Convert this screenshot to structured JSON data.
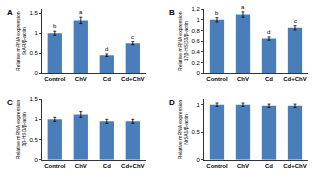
{
  "chart_data": [
    {
      "type": "bar",
      "panel": "A",
      "ylabel": [
        "Relative mRNA expression",
        "StAR/β-actin"
      ],
      "categories": [
        "Control",
        "ChV",
        "Cd",
        "Cd+ChV"
      ],
      "values": [
        1.0,
        1.32,
        0.45,
        0.75
      ],
      "errors": [
        0.05,
        0.08,
        0.03,
        0.04
      ],
      "letters": [
        "b",
        "a",
        "d",
        "c"
      ],
      "color": "#4a7ebb",
      "ylim": [
        0,
        1.6
      ],
      "yticks": [
        0,
        0.5,
        1,
        1.5
      ],
      "grid": false
    },
    {
      "type": "bar",
      "panel": "B",
      "ylabel": [
        "Relative mRNA expression",
        "17β-HSD3/β-actin"
      ],
      "categories": [
        "Control",
        "ChV",
        "Cd",
        "Cd+ChV"
      ],
      "values": [
        1.0,
        1.1,
        0.65,
        0.85
      ],
      "errors": [
        0.04,
        0.05,
        0.03,
        0.04
      ],
      "letters": [
        "b",
        "a",
        "d",
        "c"
      ],
      "color": "#4a7ebb",
      "ylim": [
        0,
        1.2
      ],
      "yticks": [
        0,
        0.2,
        0.4,
        0.6,
        0.8,
        1,
        1.2
      ],
      "grid": false
    },
    {
      "type": "bar",
      "panel": "C",
      "ylabel": [
        "Relative mRNA expression",
        "3β-HSD/β-actin"
      ],
      "categories": [
        "Control",
        "ChV",
        "Cd",
        "Cd+ChV"
      ],
      "values": [
        1.0,
        1.12,
        0.95,
        0.95
      ],
      "errors": [
        0.05,
        0.07,
        0.05,
        0.05
      ],
      "color": "#4a7ebb",
      "ylim": [
        0,
        1.5
      ],
      "yticks": [
        0,
        0.5,
        1,
        1.5
      ],
      "grid": false
    },
    {
      "type": "bar",
      "panel": "D",
      "ylabel": [
        "Relative mRNA expression",
        "Nr5A1/β-actin"
      ],
      "categories": [
        "Control",
        "ChV",
        "Cd",
        "Cd+ChV"
      ],
      "values": [
        1.0,
        1.0,
        0.98,
        0.98
      ],
      "errors": [
        0.03,
        0.03,
        0.03,
        0.03
      ],
      "color": "#4a7ebb",
      "ylim": [
        0,
        1.1
      ],
      "yticks": [
        0,
        0.5,
        1
      ],
      "grid": false
    }
  ]
}
